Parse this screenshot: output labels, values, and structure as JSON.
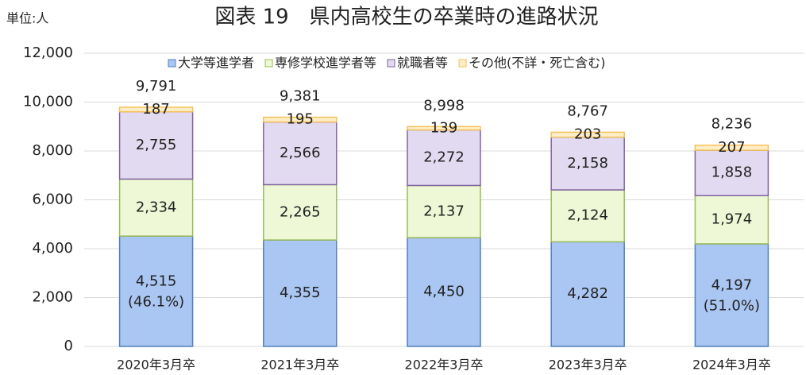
{
  "chart_data": {
    "type": "stacked_bar",
    "title": "図表 19　県内高校生の卒業時の進路状況",
    "unit_label": "単位:人",
    "categories": [
      "2020年3月卒",
      "2021年3月卒",
      "2022年3月卒",
      "2023年3月卒",
      "2024年3月卒"
    ],
    "series": [
      {
        "name": "大学等進学者",
        "color": "#aac6f2",
        "edge_color": "#4f81bd",
        "values": [
          4515,
          4355,
          4450,
          4282,
          4197
        ],
        "value_labels": [
          "4,515",
          "4,355",
          "4,450",
          "4,282",
          "4,197"
        ],
        "notes": [
          "(46.1%)",
          null,
          null,
          null,
          "(51.0%)"
        ]
      },
      {
        "name": "専修学校進学者等",
        "color": "#eef8d6",
        "edge_color": "#9bbb59",
        "values": [
          2334,
          2265,
          2137,
          2124,
          1974
        ],
        "value_labels": [
          "2,334",
          "2,265",
          "2,137",
          "2,124",
          "1,974"
        ]
      },
      {
        "name": "就職者等",
        "color": "#e2daf0",
        "edge_color": "#8064a2",
        "values": [
          2755,
          2566,
          2272,
          2158,
          1858
        ],
        "value_labels": [
          "2,755",
          "2,566",
          "2,272",
          "2,158",
          "1,858"
        ]
      },
      {
        "name": "その他(不詳・死亡含む)",
        "color": "#fdeec8",
        "edge_color": "#f6c15a",
        "values": [
          187,
          195,
          139,
          203,
          207
        ]
      }
    ],
    "totals": [
      9791,
      9381,
      8998,
      8767,
      8236
    ],
    "total_labels": [
      "9,791",
      "9,381",
      "8,998",
      "8,767",
      "8,236"
    ],
    "ylim": [
      0,
      12000
    ],
    "yticks": [
      0,
      {
        "value": 2000,
        "label": "2,000"
      },
      {
        "value": 4000,
        "label": "4,000"
      },
      {
        "value": 6000,
        "label": "6,000"
      },
      {
        "value": 8000,
        "label": "8,000"
      },
      {
        "value": 10000,
        "label": "10,000"
      },
      {
        "value": 12000,
        "label": "12,000"
      }
    ],
    "grid": true
  }
}
